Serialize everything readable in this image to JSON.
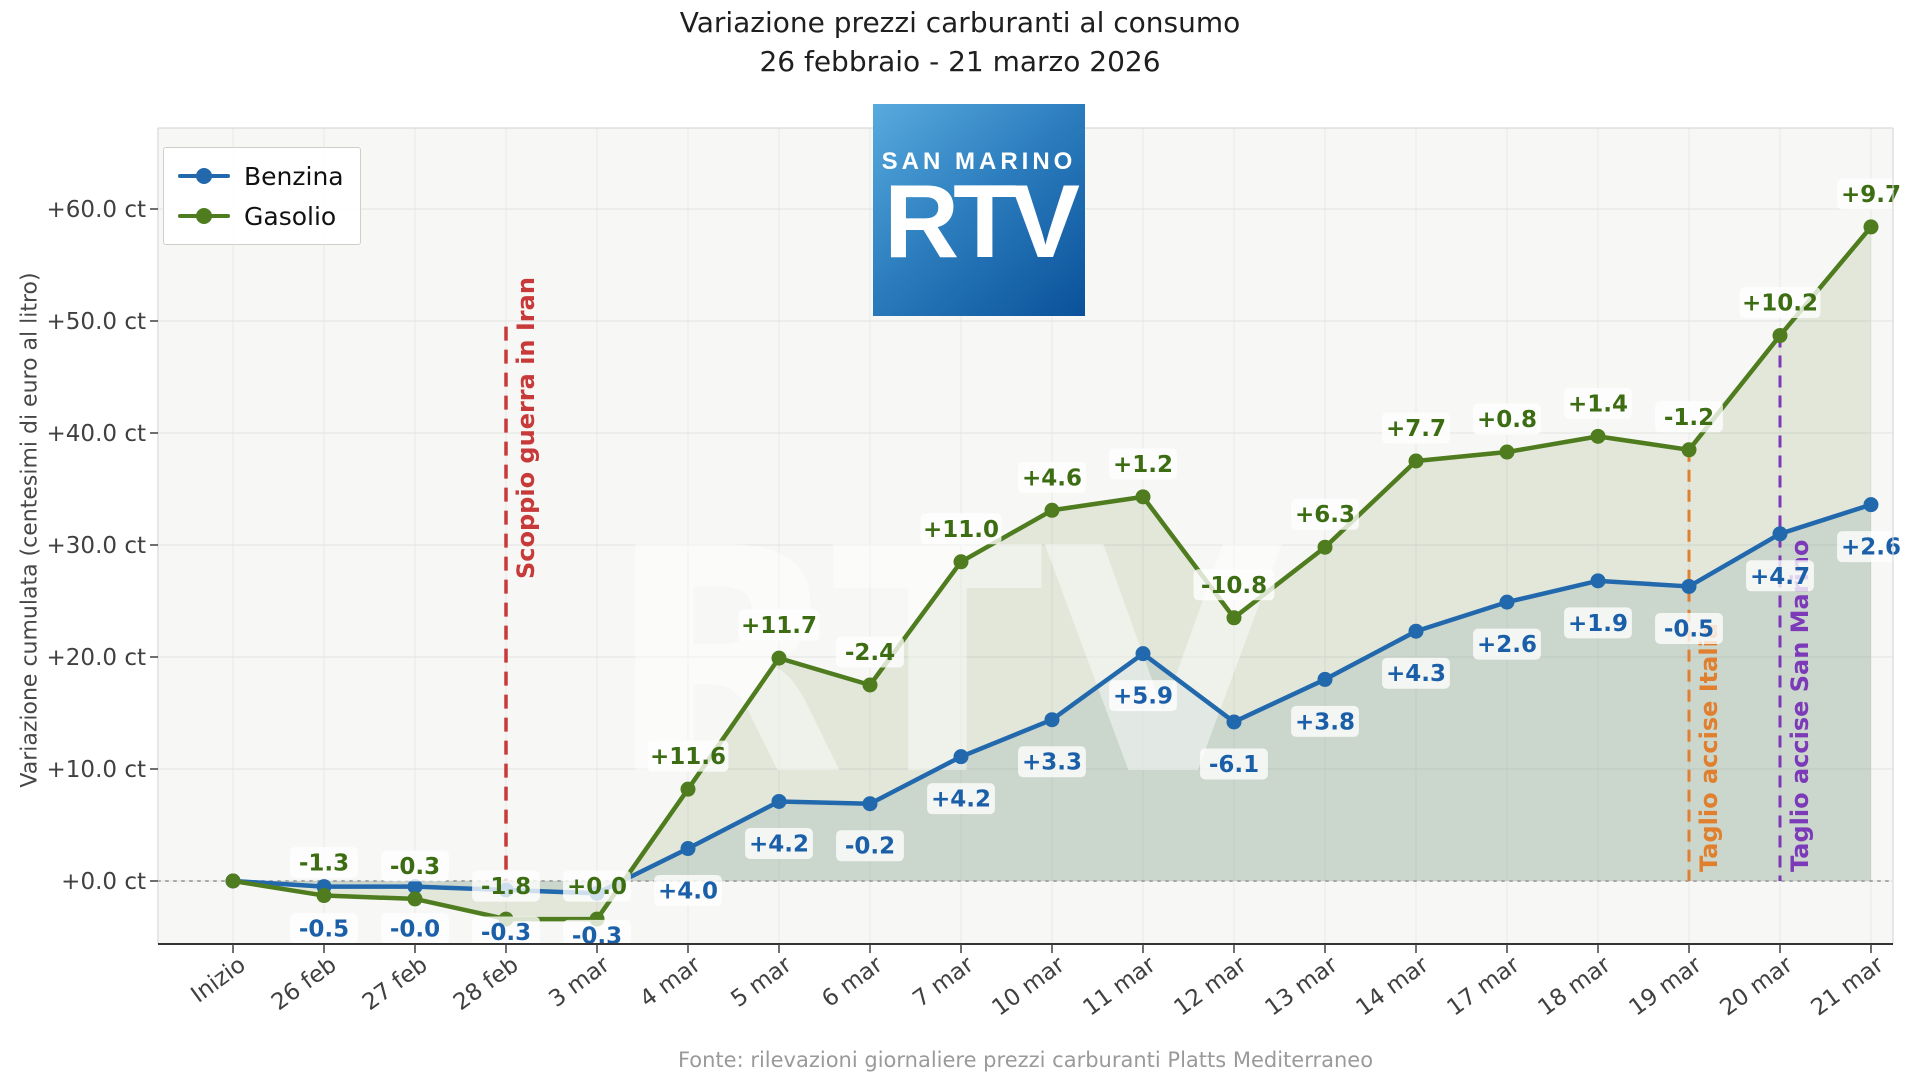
{
  "title": {
    "line1": "Variazione prezzi carburanti al consumo",
    "line2": "26 febbraio - 21 marzo 2026"
  },
  "y_axis_label": "Variazione cumulata (centesimi di euro al litro)",
  "footer": "Fonte: rilevazioni giornaliere prezzi carburanti Platts Mediterraneo",
  "logo": {
    "top_text": "SAN MARINO",
    "main_text": "RTV"
  },
  "watermark": "RTV",
  "legend": {
    "items": [
      {
        "label": "Benzina",
        "color": "#2268ad"
      },
      {
        "label": "Gasolio",
        "color": "#4e7c1e"
      }
    ]
  },
  "chart_data": {
    "type": "line",
    "title": "Variazione prezzi carburanti al consumo — 26 febbraio - 21 marzo 2026",
    "xlabel": "",
    "ylabel": "Variazione cumulata (centesimi di euro al litro)",
    "legend_position": "upper left",
    "grid": true,
    "categories": [
      "Inizio",
      "26 feb",
      "27 feb",
      "28 feb",
      "3 mar",
      "4 mar",
      "5 mar",
      "6 mar",
      "7 mar",
      "10 mar",
      "11 mar",
      "12 mar",
      "13 mar",
      "14 mar",
      "17 mar",
      "18 mar",
      "19 mar",
      "20 mar",
      "21 mar"
    ],
    "y_axis": {
      "min": -5.5,
      "max": 66.5,
      "tick_values": [
        0,
        10,
        20,
        30,
        40,
        50,
        60
      ],
      "tick_labels": [
        "+0.0 ct",
        "+10.0 ct",
        "+20.0 ct",
        "+30.0 ct",
        "+40.0 ct",
        "+50.0 ct",
        "+60.0 ct"
      ]
    },
    "series": [
      {
        "name": "Benzina",
        "color": "#2268ad",
        "label_color": "#1a5fa8",
        "fill_color": "#63898f",
        "fill_opacity": 0.18,
        "label_side": "below",
        "cumulative": [
          0.0,
          -0.5,
          -0.5,
          -0.8,
          -1.1,
          2.9,
          7.1,
          6.9,
          11.1,
          14.4,
          20.3,
          14.2,
          18.0,
          22.3,
          24.9,
          26.8,
          26.3,
          31.0,
          33.6
        ],
        "daily_change_labels": [
          null,
          "-0.5",
          "-0.0",
          "-0.3",
          "-0.3",
          "+4.0",
          "+4.2",
          "-0.2",
          "+4.2",
          "+3.3",
          "+5.9",
          "-6.1",
          "+3.8",
          "+4.3",
          "+2.6",
          "+1.9",
          "-0.5",
          "+4.7",
          "+2.6"
        ]
      },
      {
        "name": "Gasolio",
        "color": "#4e7c1e",
        "label_color": "#3c6d12",
        "fill_color": "#6e8c3c",
        "fill_opacity": 0.15,
        "label_side": "above",
        "cumulative": [
          0.0,
          -1.3,
          -1.6,
          -3.4,
          -3.4,
          8.2,
          19.9,
          17.5,
          28.5,
          33.1,
          34.3,
          23.5,
          29.8,
          37.5,
          38.3,
          39.7,
          38.5,
          48.7,
          58.4
        ],
        "daily_change_labels": [
          null,
          "-1.3",
          "-0.3",
          "-1.8",
          "+0.0",
          "+11.6",
          "+11.7",
          "-2.4",
          "+11.0",
          "+4.6",
          "+1.2",
          "-10.8",
          "+6.3",
          "+7.7",
          "+0.8",
          "+1.4",
          "-1.2",
          "+10.2",
          "+9.7"
        ]
      }
    ],
    "annotations": [
      {
        "text": "Scoppio guerra in Iran",
        "category": "28 feb",
        "color": "#c83939",
        "top_value": 49.5
      },
      {
        "text": "Taglio accise Italia",
        "category": "19 mar",
        "color": "#e07f2d",
        "top_value": 38.5
      },
      {
        "text": "Taglio accise San Marino",
        "category": "20 mar",
        "color": "#7c3ab8",
        "top_value": 48.7
      }
    ]
  }
}
